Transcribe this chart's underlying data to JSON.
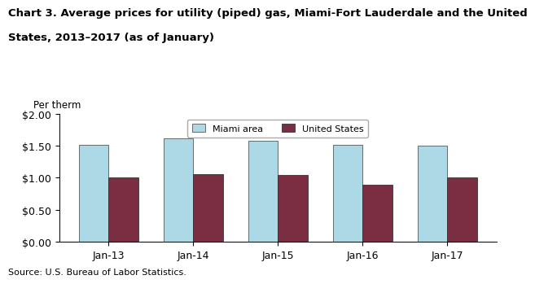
{
  "title_line1": "Chart 3. Average prices for utility (piped) gas, Miami-Fort Lauderdale and the United",
  "title_line2": "States, 2013–2017 (as of January)",
  "ylabel": "Per therm",
  "source": "Source: U.S. Bureau of Labor Statistics.",
  "categories": [
    "Jan-13",
    "Jan-14",
    "Jan-15",
    "Jan-16",
    "Jan-17"
  ],
  "miami_values": [
    1.51,
    1.61,
    1.58,
    1.51,
    1.5
  ],
  "us_values": [
    1.0,
    1.05,
    1.04,
    0.89,
    1.0
  ],
  "miami_color": "#ADD8E6",
  "us_color": "#7B2D42",
  "ylim": [
    0,
    2.0
  ],
  "yticks": [
    0.0,
    0.5,
    1.0,
    1.5,
    2.0
  ],
  "ytick_labels": [
    "$0.00",
    "$0.50",
    "$1.00",
    "$1.50",
    "$2.00"
  ],
  "legend_labels": [
    "Miami area",
    "United States"
  ],
  "bar_width": 0.35,
  "title_fontsize": 9.5,
  "axis_fontsize": 8.5,
  "tick_fontsize": 9,
  "source_fontsize": 8,
  "background_color": "#ffffff"
}
